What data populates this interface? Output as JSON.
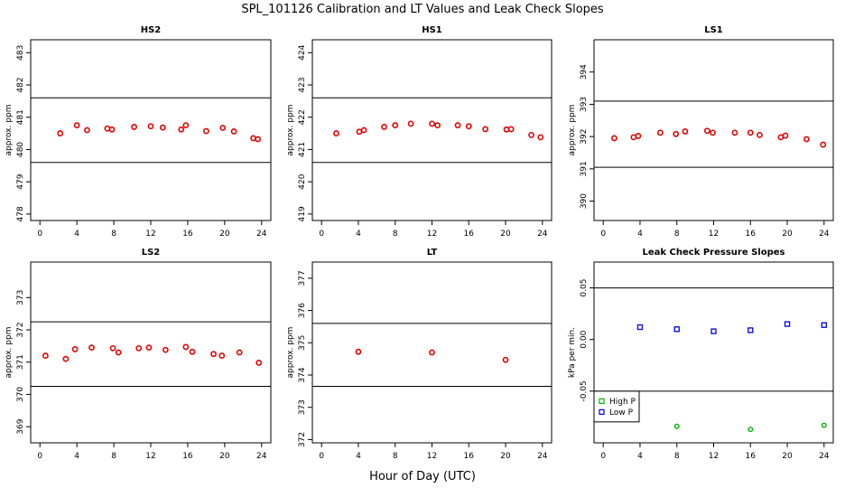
{
  "figure": {
    "title": "SPL_101126  Calibration and LT Values and Leak Check Slopes",
    "xlabel": "Hour of Day (UTC)"
  },
  "colors": {
    "calib": "#e00000",
    "high_p": "#00b000",
    "low_p": "#0000e0",
    "axis": "#000000"
  },
  "chart_data": [
    {
      "type": "scatter",
      "title": "HS2",
      "xlabel": "",
      "ylabel": "approx. ppm",
      "xlim": [
        -1,
        25
      ],
      "ylim": [
        477.8,
        483.4
      ],
      "xticks": [
        0,
        4,
        8,
        12,
        16,
        20,
        24
      ],
      "yticks": [
        478,
        479,
        480,
        481,
        482,
        483
      ],
      "hlines": [
        481.6,
        479.6
      ],
      "series": [
        {
          "name": "HS2",
          "color": "#e00000",
          "x": [
            2.2,
            4,
            5.1,
            7.3,
            7.8,
            10.2,
            12,
            13.3,
            15.3,
            15.8,
            18,
            19.8,
            21,
            23.1,
            23.6
          ],
          "y": [
            480.5,
            480.75,
            480.6,
            480.65,
            480.62,
            480.7,
            480.72,
            480.68,
            480.62,
            480.75,
            480.57,
            480.67,
            480.56,
            480.35,
            480.32
          ]
        }
      ]
    },
    {
      "type": "scatter",
      "title": "HS1",
      "xlabel": "",
      "ylabel": "approx. ppm",
      "xlim": [
        -1,
        25
      ],
      "ylim": [
        418.8,
        424.4
      ],
      "xticks": [
        0,
        4,
        8,
        12,
        16,
        20,
        24
      ],
      "yticks": [
        419,
        420,
        421,
        422,
        423,
        424
      ],
      "hlines": [
        422.6,
        420.6
      ],
      "series": [
        {
          "name": "HS1",
          "color": "#e00000",
          "x": [
            1.6,
            4.1,
            4.6,
            6.8,
            8,
            9.7,
            12,
            12.6,
            14.8,
            16,
            17.8,
            20.1,
            20.6,
            22.8,
            23.8
          ],
          "y": [
            421.5,
            421.55,
            421.6,
            421.7,
            421.75,
            421.8,
            421.8,
            421.75,
            421.75,
            421.72,
            421.63,
            421.62,
            421.63,
            421.45,
            421.38
          ]
        }
      ]
    },
    {
      "type": "scatter",
      "title": "LS1",
      "xlabel": "",
      "ylabel": "approx. ppm",
      "xlim": [
        -1,
        25
      ],
      "ylim": [
        389.4,
        395.0
      ],
      "xticks": [
        0,
        4,
        8,
        12,
        16,
        20,
        24
      ],
      "yticks": [
        390,
        391,
        392,
        393,
        394
      ],
      "hlines": [
        393.1,
        391.05
      ],
      "series": [
        {
          "name": "LS1",
          "color": "#e00000",
          "x": [
            1.2,
            3.3,
            3.8,
            6.2,
            7.9,
            8.9,
            11.3,
            11.9,
            14.3,
            16,
            17,
            19.3,
            19.8,
            22.1,
            23.9
          ],
          "y": [
            391.95,
            391.98,
            392.02,
            392.12,
            392.08,
            392.16,
            392.18,
            392.12,
            392.12,
            392.12,
            392.05,
            391.98,
            392.03,
            391.92,
            391.75
          ]
        }
      ]
    },
    {
      "type": "scatter",
      "title": "LS2",
      "xlabel": "",
      "ylabel": "approx. ppm",
      "xlim": [
        -1,
        25
      ],
      "ylim": [
        368.5,
        374.1
      ],
      "xticks": [
        0,
        4,
        8,
        12,
        16,
        20,
        24
      ],
      "yticks": [
        369,
        370,
        371,
        372,
        373
      ],
      "hlines": [
        372.25,
        370.25
      ],
      "series": [
        {
          "name": "LS2",
          "color": "#e00000",
          "x": [
            0.6,
            2.8,
            3.8,
            5.6,
            7.9,
            8.5,
            10.7,
            11.8,
            13.6,
            15.8,
            16.5,
            18.8,
            19.7,
            21.6,
            23.7
          ],
          "y": [
            371.2,
            371.1,
            371.4,
            371.45,
            371.43,
            371.3,
            371.43,
            371.45,
            371.38,
            371.47,
            371.32,
            371.25,
            371.2,
            371.3,
            370.98
          ]
        }
      ]
    },
    {
      "type": "scatter",
      "title": "LT",
      "xlabel": "",
      "ylabel": "approx. ppm",
      "xlim": [
        -1,
        25
      ],
      "ylim": [
        371.9,
        377.5
      ],
      "xticks": [
        0,
        4,
        8,
        12,
        16,
        20,
        24
      ],
      "yticks": [
        372,
        373,
        374,
        375,
        376,
        377
      ],
      "hlines": [
        375.6,
        373.65
      ],
      "series": [
        {
          "name": "LT",
          "color": "#e00000",
          "x": [
            4,
            12,
            20
          ],
          "y": [
            374.72,
            374.7,
            374.47
          ]
        }
      ]
    },
    {
      "type": "scatter",
      "title": "Leak Check Pressure Slopes",
      "xlabel": "",
      "ylabel": "kPa per min.",
      "xlim": [
        -1,
        25
      ],
      "ylim": [
        -0.1,
        0.075
      ],
      "xticks": [
        0,
        4,
        8,
        12,
        16,
        20,
        24
      ],
      "yticks": [
        -0.05,
        0.0,
        0.05
      ],
      "ytick_labels": [
        "-0.05",
        "0.00",
        "0.05"
      ],
      "hlines": [
        0.05,
        -0.05
      ],
      "legend": {
        "position": "bottom-left",
        "entries": [
          "High P",
          "Low P"
        ]
      },
      "series": [
        {
          "name": "High P",
          "color": "#00b000",
          "marker": "circle-small",
          "x": [
            8,
            16,
            24
          ],
          "y": [
            -0.084,
            -0.087,
            -0.083
          ]
        },
        {
          "name": "Low P",
          "color": "#0000e0",
          "marker": "square",
          "x": [
            4,
            8,
            12,
            16,
            20,
            24
          ],
          "y": [
            0.012,
            0.01,
            0.008,
            0.009,
            0.015,
            0.014
          ]
        }
      ]
    }
  ]
}
